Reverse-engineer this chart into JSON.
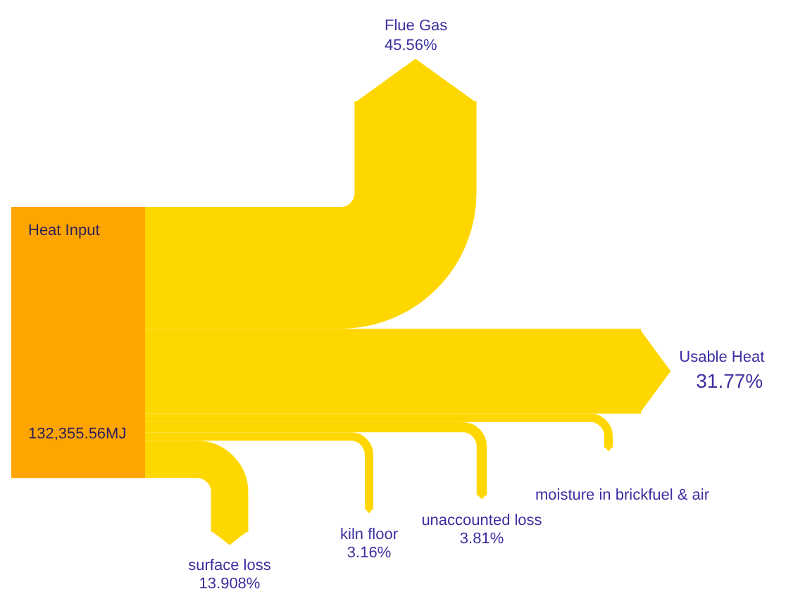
{
  "chart_data": {
    "type": "other",
    "categories": [
      "Flue Gas",
      "Usable Heat",
      "moisture in brickfuel & air",
      "unaccounted loss",
      "kiln floor",
      "surface loss"
    ],
    "values": [
      45.56,
      31.77,
      null,
      3.81,
      3.16,
      13.908
    ],
    "value_labels": [
      "45.56%",
      "31.77%",
      null,
      "3.81%",
      "3.16%",
      "13.908%"
    ],
    "colors": [
      "#ffd700",
      "#ffd700",
      "#ffd700",
      "#ffd700",
      "#ffd700",
      "#ffd700"
    ],
    "annotations": [
      "Heat Input",
      "132,355.56MJ"
    ]
  }
}
